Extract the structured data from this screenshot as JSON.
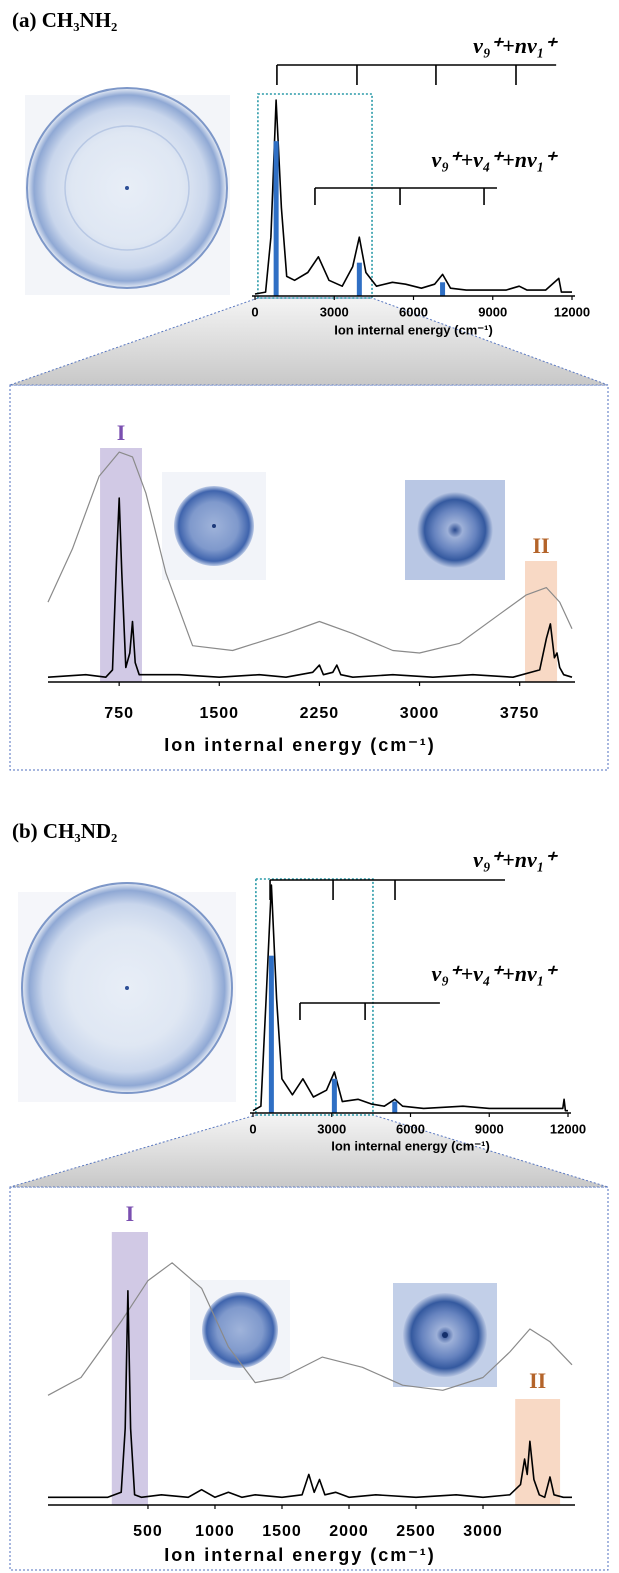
{
  "chart_data": [
    {
      "type": "line",
      "title": "(a) CH₃NH₂",
      "xlabel": "Ion internal energy (cm⁻¹)",
      "xlim": [
        0,
        12000
      ],
      "xticks": [
        0,
        3000,
        6000,
        9000,
        12000
      ],
      "ylim": [
        0,
        1
      ],
      "zoom_range": [
        110,
        4430
      ],
      "series": [
        {
          "color": "#000000",
          "x": [
            0,
            400,
            600,
            800,
            1000,
            1200,
            1500,
            2000,
            2400,
            2800,
            3300,
            3700,
            3950,
            4200,
            4600,
            5200,
            5700,
            6300,
            6800,
            7100,
            7400,
            8000,
            8800,
            9500,
            10000,
            10300,
            11000,
            11500,
            11600,
            12000
          ],
          "values": [
            0.01,
            0.02,
            0.3,
            1.0,
            0.45,
            0.1,
            0.08,
            0.12,
            0.2,
            0.08,
            0.05,
            0.15,
            0.3,
            0.12,
            0.05,
            0.07,
            0.06,
            0.04,
            0.06,
            0.11,
            0.04,
            0.03,
            0.03,
            0.03,
            0.05,
            0.03,
            0.03,
            0.09,
            0.02,
            0.02
          ]
        }
      ],
      "sticks": {
        "color": "#2f6fc4",
        "x": [
          800,
          3950,
          7100
        ],
        "values": [
          0.79,
          0.17,
          0.07
        ]
      },
      "combs": [
        {
          "label": "v₉⁺+nv₁⁺",
          "positions": [
            830,
            3860,
            6850,
            9880
          ],
          "span": [
            830,
            11400
          ]
        },
        {
          "label": "v₉⁺+v₄⁺+nv₁⁺",
          "positions": [
            2270,
            5490,
            8670
          ],
          "span": [
            2270,
            9160
          ]
        }
      ]
    },
    {
      "type": "line",
      "xlabel": "Ion internal energy (cm⁻¹)",
      "xlim": [
        217,
        4142
      ],
      "xticks": [
        750,
        1500,
        2250,
        3000,
        3750
      ],
      "ylim": [
        0,
        1
      ],
      "regions": [
        {
          "label": "I",
          "range": [
            607,
            921
          ],
          "color": "#c9bfe0",
          "label_color": "#7a4fb0"
        },
        {
          "label": "II",
          "range": [
            3790,
            4030
          ],
          "color": "#f7d2bb",
          "label_color": "#b4642a"
        }
      ],
      "series": [
        {
          "color": "#8a8a8a",
          "x": [
            217,
            400,
            600,
            750,
            850,
            950,
            1100,
            1300,
            1600,
            2000,
            2250,
            2500,
            2800,
            3000,
            3300,
            3600,
            3800,
            3950,
            4050,
            4142
          ],
          "values": [
            0.33,
            0.55,
            0.85,
            0.95,
            0.93,
            0.78,
            0.45,
            0.15,
            0.13,
            0.2,
            0.25,
            0.2,
            0.13,
            0.12,
            0.16,
            0.28,
            0.36,
            0.39,
            0.33,
            0.22
          ]
        },
        {
          "color": "#000000",
          "x": [
            217,
            500,
            650,
            700,
            730,
            750,
            770,
            800,
            830,
            850,
            870,
            900,
            1200,
            1500,
            1800,
            2000,
            2200,
            2250,
            2280,
            2350,
            2380,
            2410,
            2500,
            2800,
            3100,
            3400,
            3700,
            3900,
            3950,
            3980,
            4010,
            4030,
            4050,
            4080,
            4142
          ],
          "values": [
            0.02,
            0.03,
            0.02,
            0.05,
            0.5,
            0.76,
            0.45,
            0.06,
            0.12,
            0.25,
            0.08,
            0.03,
            0.03,
            0.02,
            0.03,
            0.02,
            0.04,
            0.07,
            0.03,
            0.04,
            0.07,
            0.03,
            0.02,
            0.03,
            0.02,
            0.03,
            0.02,
            0.05,
            0.18,
            0.24,
            0.1,
            0.12,
            0.06,
            0.03,
            0.02
          ]
        }
      ]
    },
    {
      "type": "line",
      "title": "(b) CH₃ND₂",
      "xlabel": "Ion internal energy (cm⁻¹)",
      "xlim": [
        0,
        12000
      ],
      "xticks": [
        0,
        3000,
        6000,
        9000,
        12000
      ],
      "ylim": [
        0,
        1
      ],
      "zoom_range": [
        110,
        4570
      ],
      "series": [
        {
          "color": "#000000",
          "x": [
            0,
            300,
            500,
            700,
            900,
            1100,
            1500,
            1900,
            2300,
            2800,
            3100,
            3400,
            4000,
            4500,
            5000,
            5400,
            5700,
            6500,
            8000,
            9000,
            11800,
            11850,
            11900,
            12000
          ],
          "values": [
            0.01,
            0.03,
            0.5,
            1.0,
            0.5,
            0.15,
            0.08,
            0.15,
            0.07,
            0.1,
            0.18,
            0.05,
            0.06,
            0.04,
            0.03,
            0.06,
            0.03,
            0.02,
            0.03,
            0.02,
            0.02,
            0.06,
            0.01,
            0.01
          ]
        }
      ],
      "sticks": {
        "color": "#2f6fc4",
        "x": [
          700,
          3100,
          5400
        ],
        "values": [
          0.69,
          0.15,
          0.05
        ]
      },
      "combs": [
        {
          "label": "v₉⁺+nv₁⁺",
          "positions": [
            650,
            3050,
            5410
          ],
          "span": [
            650,
            9600
          ]
        },
        {
          "label": "v₉⁺+v₄⁺+nv₁⁺",
          "positions": [
            1790,
            4270
          ],
          "span": [
            1790,
            7120
          ]
        }
      ]
    },
    {
      "type": "line",
      "xlabel": "Ion internal energy (cm⁻¹)",
      "xlim": [
        -246,
        3664
      ],
      "xticks": [
        500,
        1000,
        1500,
        2000,
        2500,
        3000
      ],
      "ylim": [
        0,
        1
      ],
      "regions": [
        {
          "label": "I",
          "range": [
            230,
            500
          ],
          "color": "#c9bfe0",
          "label_color": "#7a4fb0"
        },
        {
          "label": "II",
          "range": [
            3240,
            3575
          ],
          "color": "#f7d2bb",
          "label_color": "#b4642a"
        }
      ],
      "series": [
        {
          "color": "#8a8a8a",
          "x": [
            -246,
            0,
            300,
            500,
            680,
            900,
            1100,
            1300,
            1500,
            1800,
            2100,
            2400,
            2700,
            3000,
            3200,
            3350,
            3500,
            3664
          ],
          "values": [
            0.43,
            0.5,
            0.72,
            0.88,
            0.95,
            0.85,
            0.62,
            0.48,
            0.5,
            0.58,
            0.54,
            0.47,
            0.45,
            0.5,
            0.6,
            0.69,
            0.64,
            0.55
          ]
        },
        {
          "color": "#000000",
          "x": [
            -246,
            200,
            300,
            330,
            350,
            370,
            400,
            450,
            600,
            800,
            900,
            1000,
            1100,
            1200,
            1300,
            1500,
            1650,
            1700,
            1740,
            1780,
            1820,
            1900,
            2000,
            2200,
            2500,
            2800,
            3000,
            3200,
            3280,
            3310,
            3330,
            3350,
            3380,
            3420,
            3460,
            3500,
            3530,
            3600,
            3664
          ],
          "values": [
            0.03,
            0.03,
            0.05,
            0.3,
            0.84,
            0.3,
            0.04,
            0.03,
            0.04,
            0.03,
            0.06,
            0.03,
            0.05,
            0.03,
            0.04,
            0.03,
            0.04,
            0.12,
            0.05,
            0.1,
            0.04,
            0.05,
            0.03,
            0.04,
            0.03,
            0.04,
            0.03,
            0.04,
            0.08,
            0.18,
            0.12,
            0.25,
            0.1,
            0.04,
            0.03,
            0.11,
            0.04,
            0.03,
            0.03
          ]
        }
      ]
    }
  ]
}
